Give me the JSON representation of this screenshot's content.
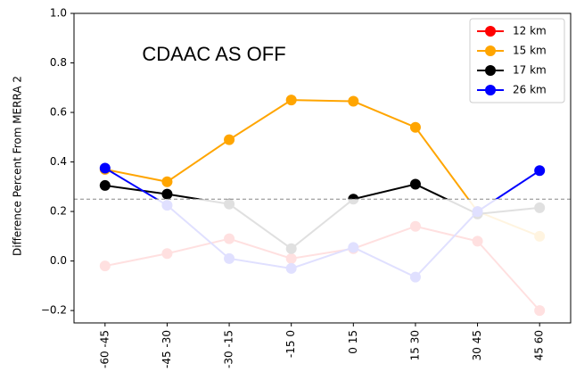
{
  "chart_data": {
    "type": "line",
    "annotation": "CDAAC AS OFF",
    "y_label": "Difference Percent From MERRA 2",
    "categories": [
      "-60 -45",
      "-45 -30",
      "-30 -15",
      "-15  0",
      "0  15",
      "15  30",
      "30  45",
      "45  60"
    ],
    "series": [
      {
        "name": "12 km",
        "color": "#ff0000",
        "values": [
          -0.02,
          0.03,
          0.09,
          0.01,
          0.05,
          0.14,
          0.08,
          -0.2
        ]
      },
      {
        "name": "15 km",
        "color": "#ffa500",
        "values": [
          0.37,
          0.32,
          0.49,
          0.65,
          0.645,
          0.54,
          0.2,
          0.1
        ]
      },
      {
        "name": "17 km",
        "color": "#000000",
        "values": [
          0.305,
          0.27,
          0.23,
          0.05,
          0.25,
          0.31,
          0.19,
          0.215
        ]
      },
      {
        "name": "26 km",
        "color": "#0000ff",
        "values": [
          0.375,
          0.225,
          0.01,
          -0.03,
          0.055,
          -0.065,
          0.2,
          0.365
        ]
      }
    ],
    "reference_line": 0.25,
    "ylim": [
      -0.25,
      1.0
    ],
    "yticks": [
      {
        "value": -0.2,
        "label": "−0.2"
      },
      {
        "value": 0,
        "label": "0.0"
      },
      0.2,
      0.4,
      0.6,
      0.8,
      {
        "value": 1,
        "label": "1.0"
      }
    ],
    "legend": "upper right"
  }
}
